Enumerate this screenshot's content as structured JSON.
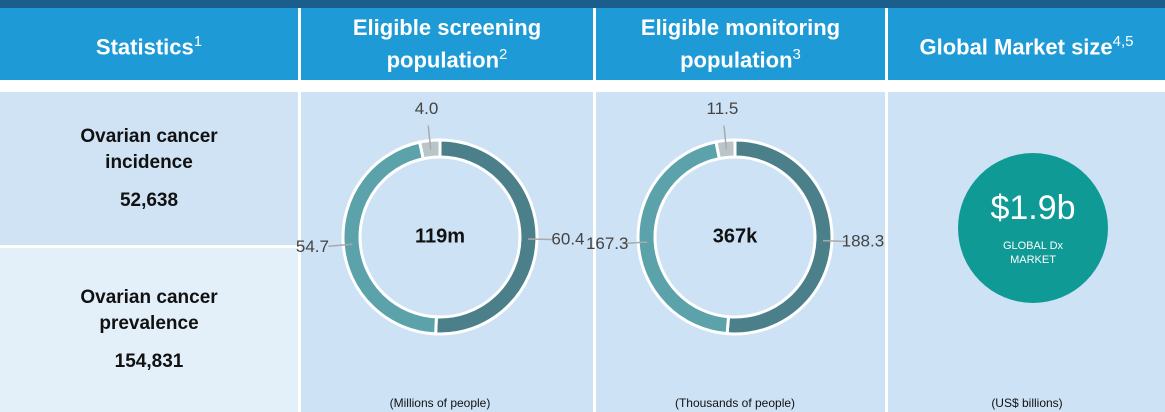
{
  "header": {
    "columns": [
      {
        "text": "Statistics",
        "sup": "1"
      },
      {
        "text": "Eligible screening population",
        "sup": "2"
      },
      {
        "text": "Eligible monitoring population",
        "sup": "3"
      },
      {
        "text": "Global Market size",
        "sup": "4,5"
      }
    ]
  },
  "statistics": [
    {
      "label": "Ovarian cancer incidence",
      "value": "52,638"
    },
    {
      "label": "Ovarian cancer prevalence",
      "value": "154,831"
    }
  ],
  "chart_data": [
    {
      "type": "pie",
      "donut": true,
      "center_label": "119m",
      "caption": "(Millions of people)",
      "categories": [
        null,
        null,
        null
      ],
      "values": [
        60.4,
        54.7,
        4.0
      ],
      "value_labels": [
        "60.4",
        "54.7",
        "4.0"
      ],
      "colors": [
        "#4b7f89",
        "#5ba2ab",
        "#b9c5c8"
      ]
    },
    {
      "type": "pie",
      "donut": true,
      "center_label": "367k",
      "caption": "(Thousands  of people)",
      "categories": [
        null,
        null,
        null
      ],
      "values": [
        188.3,
        167.3,
        11.5
      ],
      "colors": [
        "#4b7f89",
        "#5ba2ab",
        "#b9c5c8"
      ]
    }
  ],
  "market": {
    "value": "$1.9b",
    "label_lines": [
      "GLOBAL Dx",
      "MARKET"
    ],
    "caption": "(US$ billions)",
    "color": "#0f9a96"
  }
}
